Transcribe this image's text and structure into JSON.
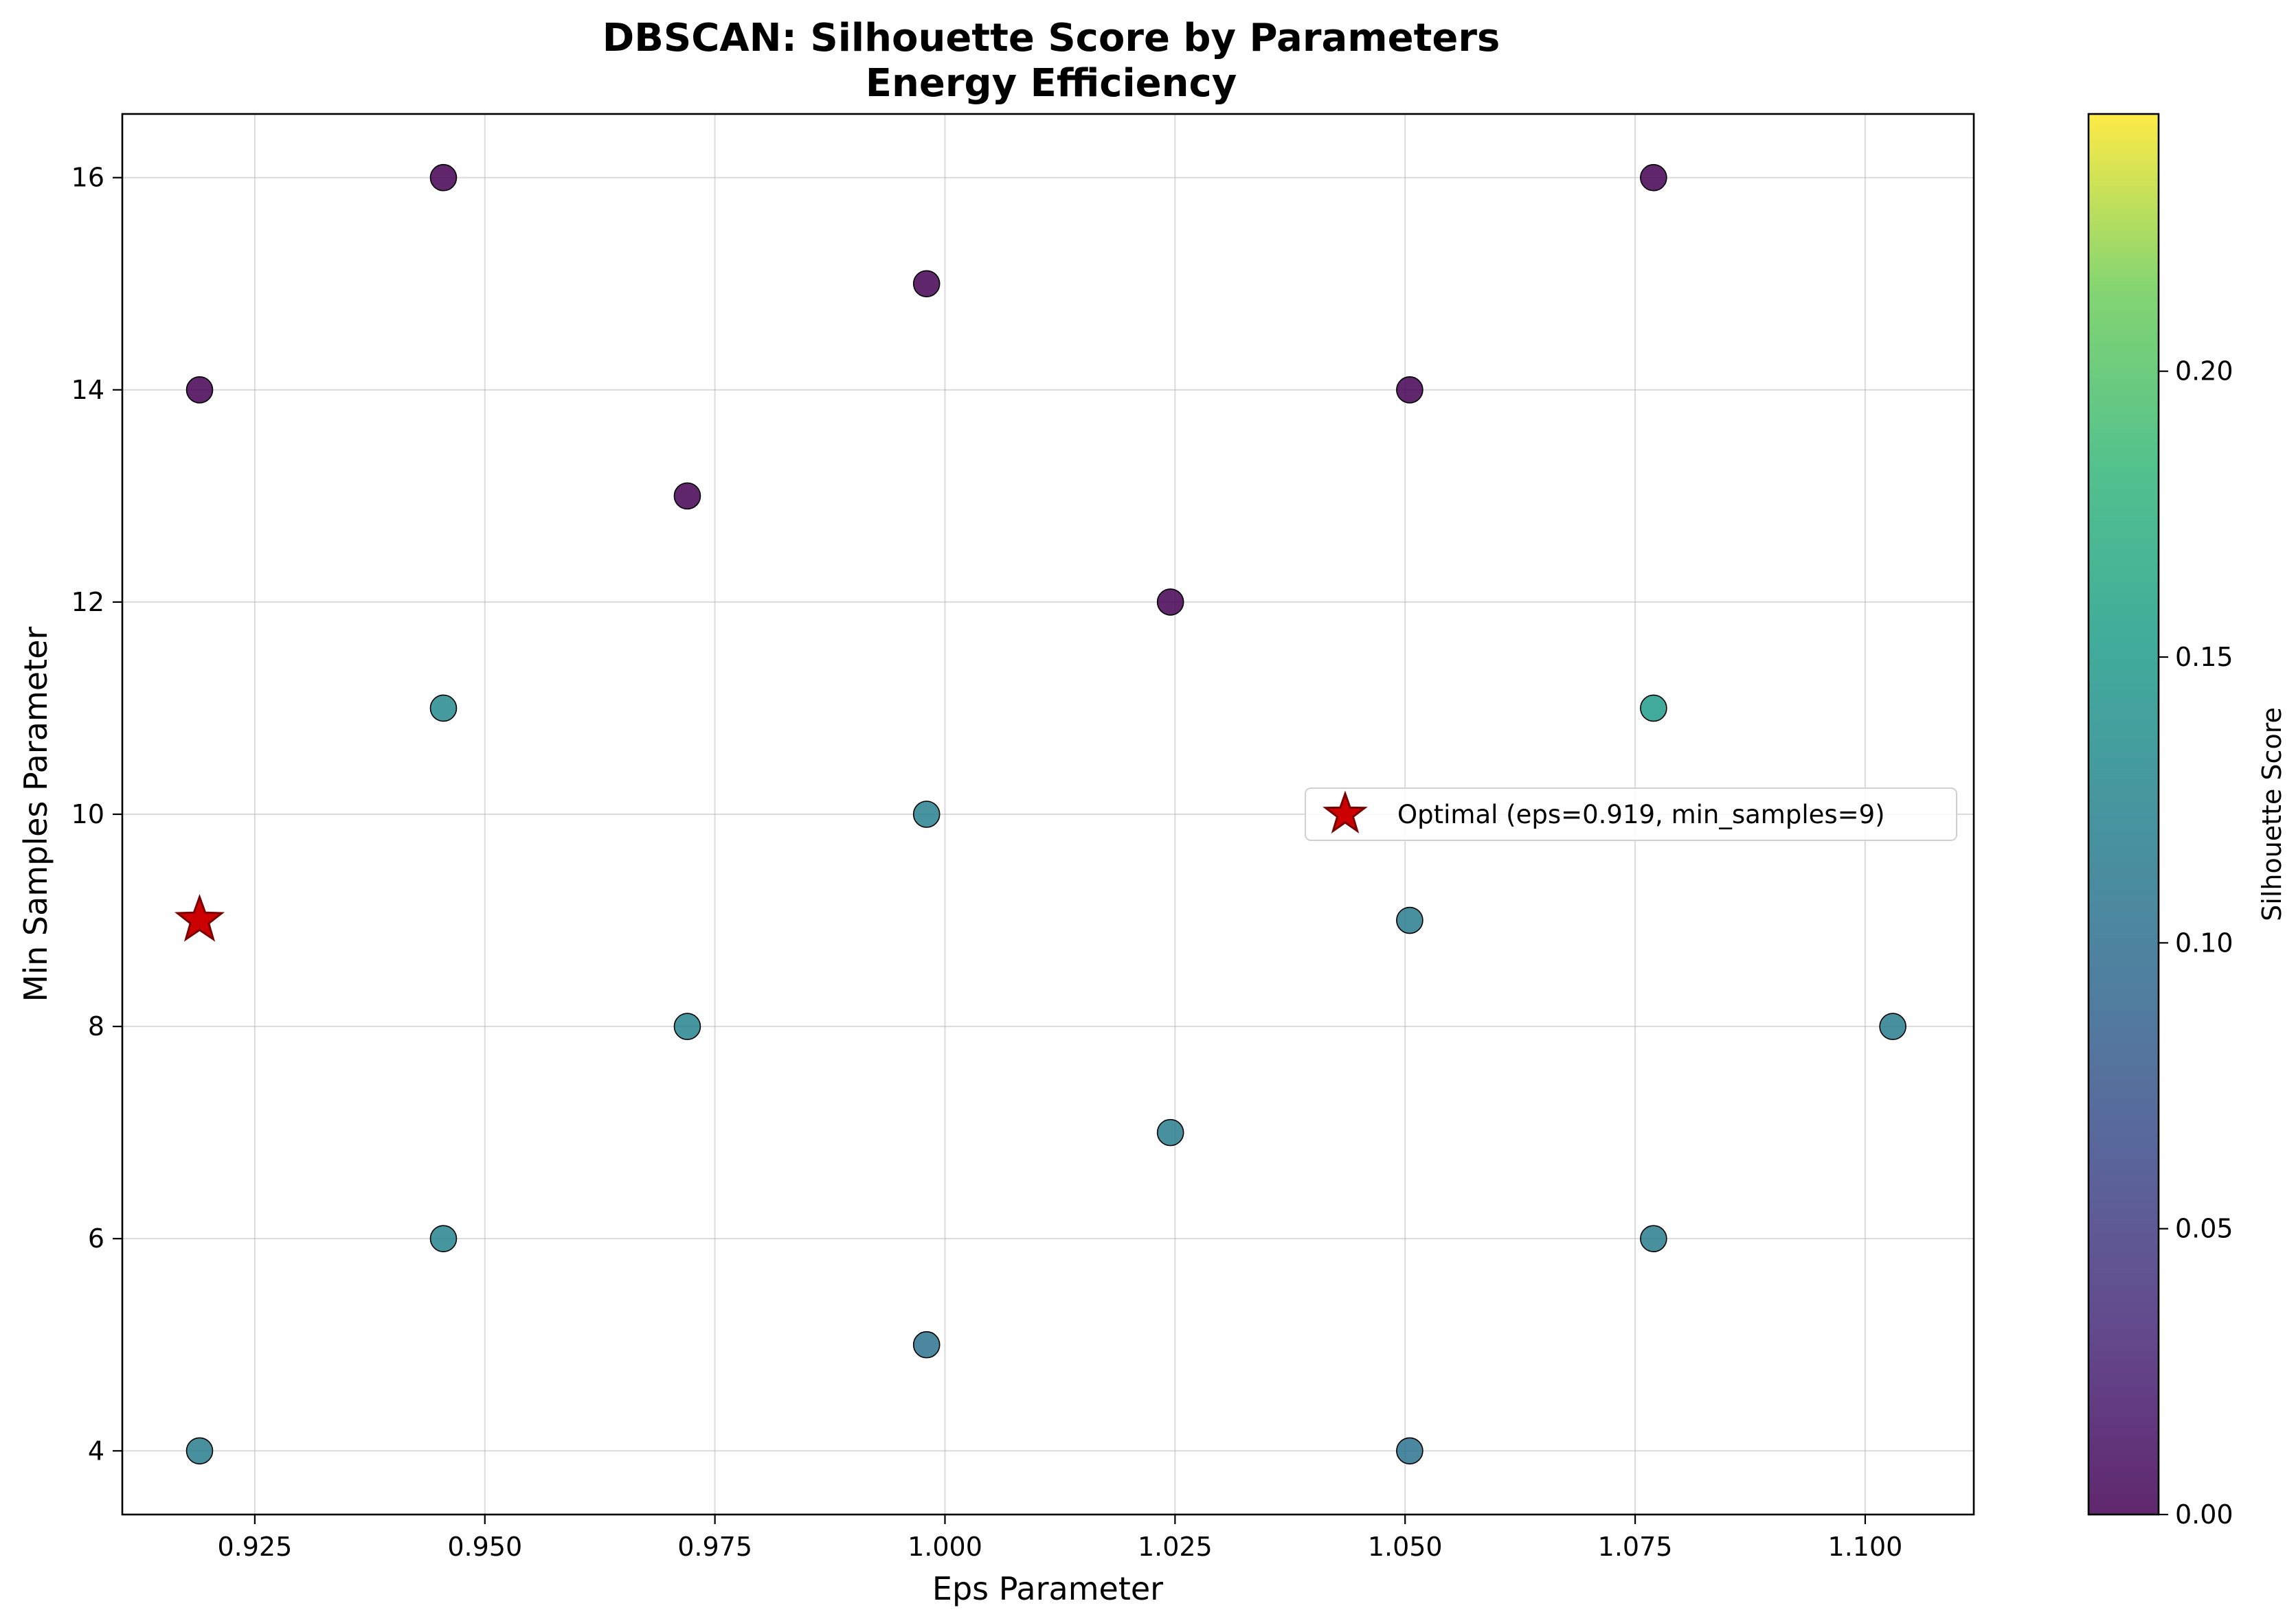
{
  "chart_data": {
    "type": "scatter",
    "title": "DBSCAN: Silhouette Score by Parameters",
    "subtitle": "Energy Efficiency",
    "xlabel": "Eps Parameter",
    "ylabel": "Min Samples Parameter",
    "xlim": [
      0.9106,
      1.1118
    ],
    "ylim": [
      3.4,
      16.6
    ],
    "xticks": [
      "0.925",
      "0.950",
      "0.975",
      "1.000",
      "1.025",
      "1.050",
      "1.075",
      "1.100"
    ],
    "xtick_values": [
      0.925,
      0.95,
      0.975,
      1.0,
      1.025,
      1.05,
      1.075,
      1.1
    ],
    "yticks": [
      "4",
      "6",
      "8",
      "10",
      "12",
      "14",
      "16"
    ],
    "ytick_values": [
      4,
      6,
      8,
      10,
      12,
      14,
      16
    ],
    "grid": true,
    "colormap": "viridis",
    "colorbar": {
      "label": "Silhouette Score",
      "range": [
        0.0,
        0.245
      ],
      "ticks": [
        "0.00",
        "0.05",
        "0.10",
        "0.15",
        "0.20"
      ],
      "tick_values": [
        0.0,
        0.05,
        0.1,
        0.15,
        0.2
      ]
    },
    "points": [
      {
        "x": 0.919,
        "y": 4,
        "score": 0.115
      },
      {
        "x": 0.919,
        "y": 14,
        "score": 0.0
      },
      {
        "x": 0.9455,
        "y": 6,
        "score": 0.125
      },
      {
        "x": 0.9455,
        "y": 11,
        "score": 0.13
      },
      {
        "x": 0.9455,
        "y": 16,
        "score": 0.0
      },
      {
        "x": 0.972,
        "y": 8,
        "score": 0.125
      },
      {
        "x": 0.972,
        "y": 13,
        "score": 0.0
      },
      {
        "x": 0.998,
        "y": 5,
        "score": 0.105
      },
      {
        "x": 0.998,
        "y": 10,
        "score": 0.12
      },
      {
        "x": 0.998,
        "y": 15,
        "score": 0.0
      },
      {
        "x": 1.0245,
        "y": 7,
        "score": 0.115
      },
      {
        "x": 1.0245,
        "y": 12,
        "score": 0.0
      },
      {
        "x": 1.0505,
        "y": 4,
        "score": 0.105
      },
      {
        "x": 1.0505,
        "y": 9,
        "score": 0.115
      },
      {
        "x": 1.0505,
        "y": 14,
        "score": 0.0
      },
      {
        "x": 1.077,
        "y": 6,
        "score": 0.115
      },
      {
        "x": 1.077,
        "y": 11,
        "score": 0.15
      },
      {
        "x": 1.077,
        "y": 16,
        "score": 0.0
      },
      {
        "x": 1.103,
        "y": 8,
        "score": 0.115
      }
    ],
    "optimal": {
      "x": 0.919,
      "y": 9,
      "marker": "star",
      "color": "#cc0000"
    },
    "legend": {
      "placement": "center-right",
      "entries": [
        {
          "label": "Optimal (eps=0.919, min_samples=9)",
          "marker": "red-star"
        }
      ]
    }
  }
}
